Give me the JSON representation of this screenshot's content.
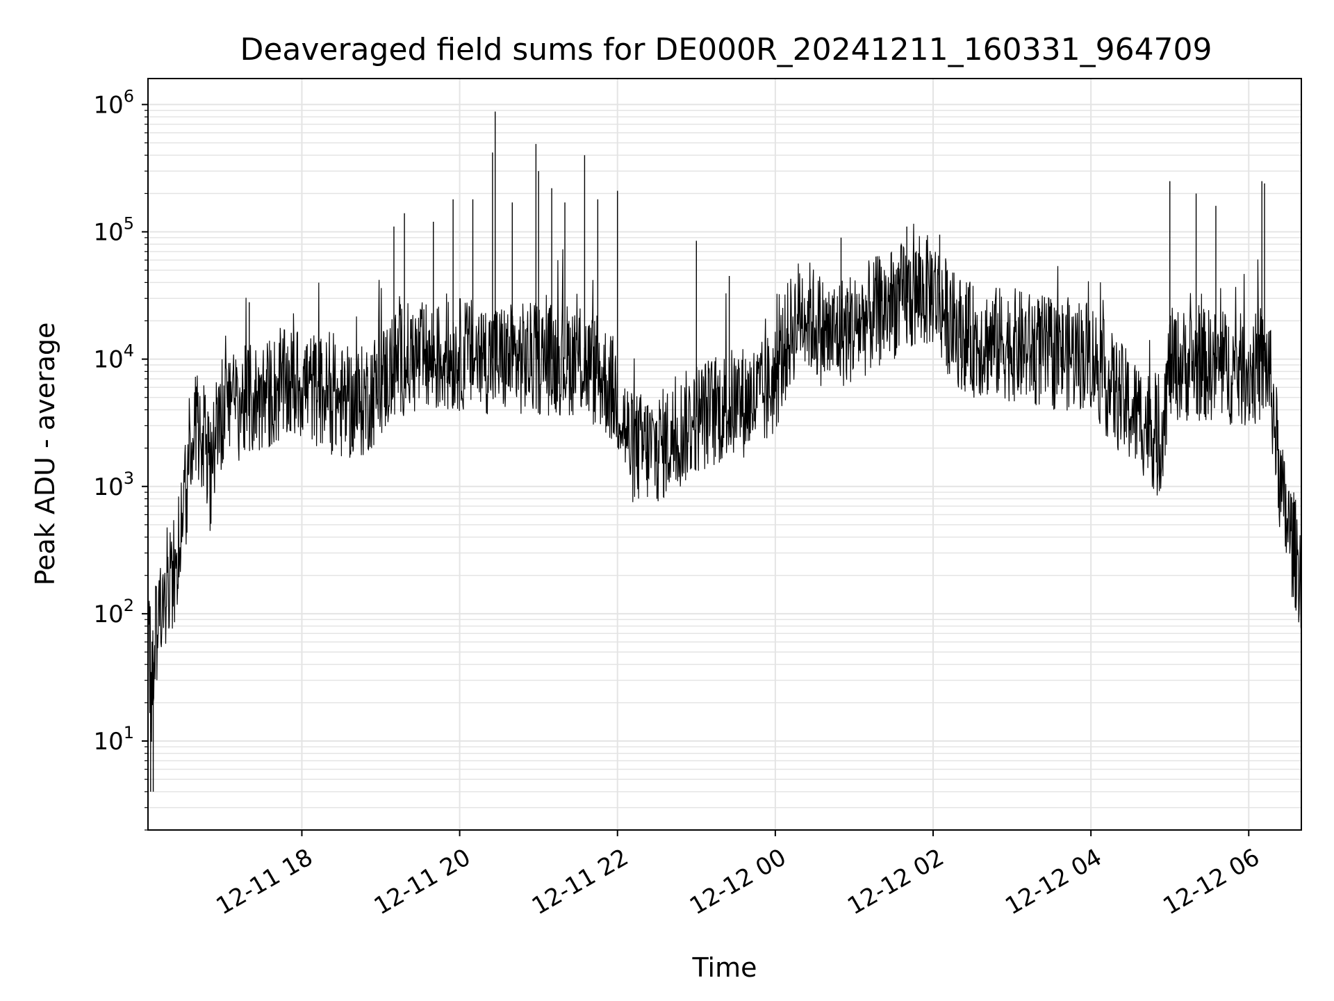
{
  "chart_data": {
    "type": "line",
    "title": "Deaveraged field sums for DE000R_20241211_160331_964709",
    "xlabel": "Time",
    "ylabel": "Peak ADU - average",
    "yscale": "log",
    "ylim": [
      2,
      1600000
    ],
    "xlim": [
      "2024-12-11 16:03",
      "2024-12-12 06:40"
    ],
    "grid": true,
    "line_color": "#000000",
    "x_ticks": [
      {
        "value": "2024-12-11 18:00",
        "label": "12-11 18"
      },
      {
        "value": "2024-12-11 20:00",
        "label": "12-11 20"
      },
      {
        "value": "2024-12-11 22:00",
        "label": "12-11 22"
      },
      {
        "value": "2024-12-12 00:00",
        "label": "12-12 00"
      },
      {
        "value": "2024-12-12 02:00",
        "label": "12-12 02"
      },
      {
        "value": "2024-12-12 04:00",
        "label": "12-12 04"
      },
      {
        "value": "2024-12-12 06:00",
        "label": "12-12 06"
      }
    ],
    "y_ticks": [
      {
        "value": 10,
        "base": "10",
        "exp": "1"
      },
      {
        "value": 100,
        "base": "10",
        "exp": "2"
      },
      {
        "value": 1000,
        "base": "10",
        "exp": "3"
      },
      {
        "value": 10000,
        "base": "10",
        "exp": "4"
      },
      {
        "value": 100000,
        "base": "10",
        "exp": "5"
      },
      {
        "value": 1000000,
        "base": "10",
        "exp": "6"
      }
    ],
    "series": [
      {
        "points": [
          [
            "2024-12-11 16:03",
            150
          ],
          [
            "2024-12-11 16:05",
            20
          ],
          [
            "2024-12-11 16:08",
            60
          ],
          [
            "2024-12-11 16:12",
            120
          ],
          [
            "2024-12-11 16:15",
            150
          ],
          [
            "2024-12-11 16:20",
            200
          ],
          [
            "2024-12-11 16:25",
            250
          ],
          [
            "2024-12-11 16:30",
            500
          ],
          [
            "2024-12-11 16:35",
            2500
          ],
          [
            "2024-12-11 16:40",
            3500
          ],
          [
            "2024-12-11 16:45",
            2500
          ],
          [
            "2024-12-11 16:50",
            1200
          ],
          [
            "2024-12-11 16:55",
            3000
          ],
          [
            "2024-12-11 17:00",
            4000
          ],
          [
            "2024-12-11 17:15",
            4500
          ],
          [
            "2024-12-11 17:30",
            5000
          ],
          [
            "2024-12-11 17:45",
            6000
          ],
          [
            "2024-12-11 18:00",
            6500
          ],
          [
            "2024-12-11 18:15",
            5500
          ],
          [
            "2024-12-11 18:30",
            4500
          ],
          [
            "2024-12-11 18:45",
            4500
          ],
          [
            "2024-12-11 19:00",
            6500
          ],
          [
            "2024-12-11 19:15",
            10000
          ],
          [
            "2024-12-11 19:30",
            10000
          ],
          [
            "2024-12-11 19:45",
            10000
          ],
          [
            "2024-12-11 20:00",
            11000
          ],
          [
            "2024-12-11 20:30",
            10000
          ],
          [
            "2024-12-11 21:00",
            10000
          ],
          [
            "2024-12-11 21:30",
            10000
          ],
          [
            "2024-12-11 21:50",
            7000
          ],
          [
            "2024-12-11 22:00",
            5000
          ],
          [
            "2024-12-11 22:10",
            2000
          ],
          [
            "2024-12-11 22:30",
            2000
          ],
          [
            "2024-12-11 22:45",
            2500
          ],
          [
            "2024-12-11 23:00",
            3500
          ],
          [
            "2024-12-11 23:30",
            4500
          ],
          [
            "2024-12-11 23:50",
            5000
          ],
          [
            "2024-12-12 00:00",
            7000
          ],
          [
            "2024-12-12 00:10",
            15000
          ],
          [
            "2024-12-12 00:20",
            25000
          ],
          [
            "2024-12-12 00:40",
            15000
          ],
          [
            "2024-12-12 01:00",
            18000
          ],
          [
            "2024-12-12 01:30",
            28000
          ],
          [
            "2024-12-12 02:00",
            35000
          ],
          [
            "2024-12-12 02:15",
            18000
          ],
          [
            "2024-12-12 02:30",
            14000
          ],
          [
            "2024-12-12 03:00",
            13000
          ],
          [
            "2024-12-12 03:30",
            11000
          ],
          [
            "2024-12-12 04:00",
            11000
          ],
          [
            "2024-12-12 04:15",
            6000
          ],
          [
            "2024-12-12 04:30",
            4000
          ],
          [
            "2024-12-12 04:45",
            3000
          ],
          [
            "2024-12-12 04:52",
            2000
          ],
          [
            "2024-12-12 05:00",
            9000
          ],
          [
            "2024-12-12 05:30",
            9000
          ],
          [
            "2024-12-12 06:00",
            8000
          ],
          [
            "2024-12-12 06:15",
            9000
          ],
          [
            "2024-12-12 06:20",
            3000
          ],
          [
            "2024-12-12 06:25",
            800
          ],
          [
            "2024-12-12 06:32",
            400
          ],
          [
            "2024-12-12 06:40",
            200
          ]
        ],
        "spikes": [
          [
            "2024-12-11 16:05",
            4
          ],
          [
            "2024-12-11 16:07",
            4
          ],
          [
            "2024-12-11 17:20",
            28000
          ],
          [
            "2024-12-11 19:10",
            110000
          ],
          [
            "2024-12-11 19:18",
            140000
          ],
          [
            "2024-12-11 19:40",
            120000
          ],
          [
            "2024-12-11 19:55",
            180000
          ],
          [
            "2024-12-11 20:10",
            180000
          ],
          [
            "2024-12-11 20:25",
            420000
          ],
          [
            "2024-12-11 20:27",
            880000
          ],
          [
            "2024-12-11 20:40",
            170000
          ],
          [
            "2024-12-11 20:58",
            490000
          ],
          [
            "2024-12-11 21:00",
            300000
          ],
          [
            "2024-12-11 21:10",
            220000
          ],
          [
            "2024-12-11 21:20",
            170000
          ],
          [
            "2024-12-11 21:35",
            400000
          ],
          [
            "2024-12-11 21:45",
            180000
          ],
          [
            "2024-12-11 22:00",
            210000
          ],
          [
            "2024-12-11 22:30",
            800
          ],
          [
            "2024-12-11 23:00",
            85000
          ],
          [
            "2024-12-11 23:25",
            45000
          ],
          [
            "2024-12-12 00:50",
            90000
          ],
          [
            "2024-12-12 01:40",
            110000
          ],
          [
            "2024-12-12 02:05",
            95000
          ],
          [
            "2024-12-12 05:00",
            250000
          ],
          [
            "2024-12-12 05:20",
            200000
          ],
          [
            "2024-12-12 05:35",
            160000
          ],
          [
            "2024-12-12 06:10",
            250000
          ],
          [
            "2024-12-12 06:12",
            240000
          ]
        ]
      }
    ]
  }
}
